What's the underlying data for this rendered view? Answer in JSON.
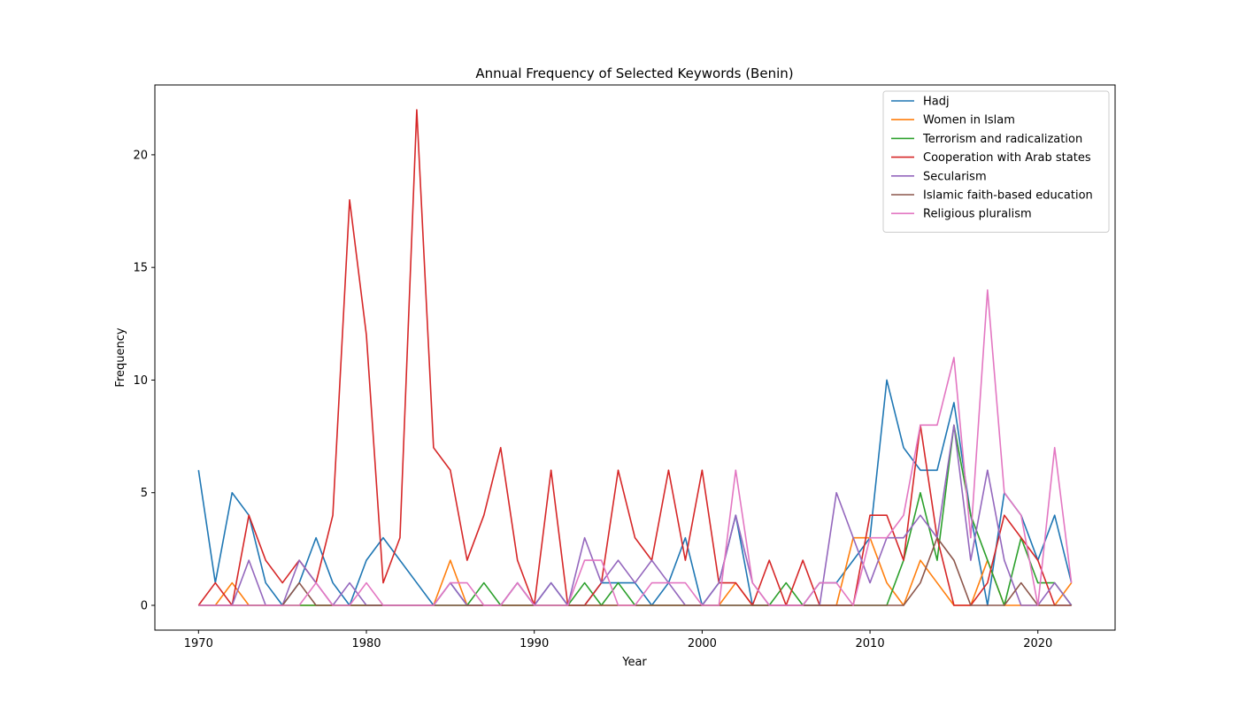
{
  "chart_data": {
    "type": "line",
    "title": "Annual Frequency of Selected Keywords (Benin)",
    "xlabel": "Year",
    "ylabel": "Frequency",
    "xlim": [
      1967.4,
      2024.6
    ],
    "ylim": [
      -1.1,
      23.1
    ],
    "xticks": [
      1970,
      1980,
      1990,
      2000,
      2010,
      2020
    ],
    "yticks": [
      0,
      5,
      10,
      15,
      20
    ],
    "grid": false,
    "legend_position": "top-right",
    "x": [
      1970,
      1971,
      1972,
      1973,
      1974,
      1975,
      1976,
      1977,
      1978,
      1979,
      1980,
      1981,
      1982,
      1983,
      1984,
      1985,
      1986,
      1987,
      1988,
      1989,
      1990,
      1991,
      1992,
      1993,
      1994,
      1995,
      1996,
      1997,
      1998,
      1999,
      2000,
      2001,
      2002,
      2003,
      2004,
      2005,
      2006,
      2007,
      2008,
      2009,
      2010,
      2011,
      2012,
      2013,
      2014,
      2015,
      2016,
      2017,
      2018,
      2019,
      2020,
      2021,
      2022
    ],
    "series": [
      {
        "name": "Hadj",
        "color": "#1f77b4",
        "values": [
          6,
          1,
          5,
          4,
          1,
          0,
          1,
          3,
          1,
          0,
          2,
          3,
          2,
          1,
          0,
          1,
          0,
          0,
          0,
          1,
          0,
          1,
          0,
          0,
          1,
          1,
          1,
          0,
          1,
          3,
          0,
          1,
          4,
          0,
          0,
          0,
          0,
          1,
          1,
          2,
          3,
          10,
          7,
          6,
          6,
          9,
          4,
          0,
          5,
          4,
          2,
          4,
          1
        ]
      },
      {
        "name": "Women in Islam",
        "color": "#ff7f0e",
        "values": [
          0,
          0,
          1,
          0,
          0,
          0,
          0,
          0,
          0,
          0,
          0,
          0,
          0,
          0,
          0,
          2,
          0,
          0,
          0,
          0,
          0,
          0,
          0,
          0,
          0,
          0,
          0,
          0,
          0,
          0,
          0,
          0,
          1,
          0,
          0,
          0,
          0,
          0,
          0,
          3,
          3,
          1,
          0,
          2,
          1,
          0,
          0,
          2,
          0,
          0,
          0,
          0,
          1
        ]
      },
      {
        "name": "Terrorism and radicalization",
        "color": "#2ca02c",
        "values": [
          0,
          0,
          0,
          0,
          0,
          0,
          0,
          0,
          0,
          0,
          0,
          0,
          0,
          0,
          0,
          0,
          0,
          1,
          0,
          0,
          0,
          0,
          0,
          1,
          0,
          1,
          0,
          0,
          0,
          0,
          0,
          0,
          0,
          0,
          0,
          1,
          0,
          0,
          0,
          0,
          0,
          0,
          2,
          5,
          2,
          8,
          4,
          2,
          0,
          3,
          1,
          1,
          0
        ]
      },
      {
        "name": "Cooperation with Arab states",
        "color": "#d62728",
        "values": [
          0,
          1,
          0,
          4,
          2,
          1,
          2,
          1,
          4,
          18,
          12,
          1,
          3,
          22,
          7,
          6,
          2,
          4,
          7,
          2,
          0,
          6,
          0,
          0,
          1,
          6,
          3,
          2,
          6,
          2,
          6,
          1,
          1,
          0,
          2,
          0,
          2,
          0,
          0,
          0,
          4,
          4,
          2,
          8,
          3,
          0,
          0,
          1,
          4,
          3,
          2,
          0,
          0
        ]
      },
      {
        "name": "Secularism",
        "color": "#9467bd",
        "values": [
          0,
          0,
          0,
          2,
          0,
          0,
          2,
          1,
          0,
          1,
          0,
          0,
          0,
          0,
          0,
          1,
          0,
          0,
          0,
          1,
          0,
          1,
          0,
          3,
          1,
          2,
          1,
          2,
          1,
          0,
          0,
          1,
          4,
          1,
          0,
          0,
          0,
          0,
          5,
          3,
          1,
          3,
          3,
          4,
          3,
          8,
          2,
          6,
          2,
          0,
          0,
          1,
          0
        ]
      },
      {
        "name": "Islamic faith-based education",
        "color": "#8c564b",
        "values": [
          0,
          0,
          0,
          0,
          0,
          0,
          1,
          0,
          0,
          0,
          0,
          0,
          0,
          0,
          0,
          0,
          0,
          0,
          0,
          0,
          0,
          0,
          0,
          0,
          0,
          0,
          0,
          0,
          0,
          0,
          0,
          0,
          0,
          0,
          0,
          0,
          0,
          0,
          0,
          0,
          0,
          0,
          0,
          1,
          3,
          2,
          0,
          0,
          0,
          1,
          0,
          0,
          0
        ]
      },
      {
        "name": "Religious pluralism",
        "color": "#e377c2",
        "values": [
          0,
          0,
          0,
          0,
          0,
          0,
          0,
          1,
          0,
          0,
          1,
          0,
          0,
          0,
          0,
          1,
          1,
          0,
          0,
          1,
          0,
          0,
          0,
          2,
          2,
          0,
          0,
          1,
          1,
          1,
          0,
          0,
          6,
          1,
          0,
          0,
          0,
          1,
          1,
          0,
          3,
          3,
          4,
          8,
          8,
          11,
          3,
          14,
          5,
          4,
          0,
          7,
          1
        ]
      }
    ]
  }
}
